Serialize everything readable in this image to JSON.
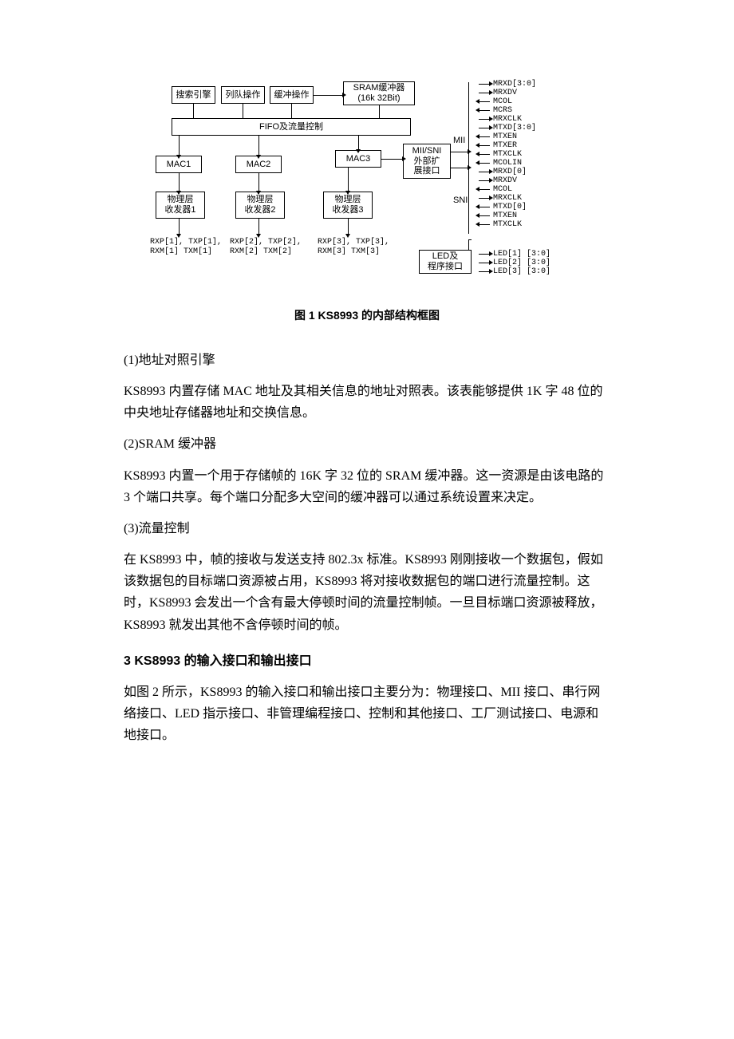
{
  "figure": {
    "caption": "图 1  KS8993 的内部结构框图",
    "blocks": {
      "search": "搜索引擎",
      "queue": "列队操作",
      "bufop": "缓冲操作",
      "sram": "SRAM缓冲器\n(16k 32Bit)",
      "fifo": "FIFO及流量控制",
      "mac1": "MAC1",
      "mac2": "MAC2",
      "mac3": "MAC3",
      "phy1": "物理层\n收发器1",
      "phy2": "物理层\n收发器2",
      "phy3": "物理层\n收发器3",
      "ext": "MII/SNI\n外部扩\n展接口",
      "led": "LED及\n程序接口"
    },
    "lbls": {
      "mii": "MII",
      "sni": "SNI"
    },
    "ports": {
      "p1": "RXP[1], TXP[1],\nRXM[1] TXM[1]",
      "p2": "RXP[2], TXP[2],\nRXM[2] TXM[2]",
      "p3": "RXP[3], TXP[3],\nRXM[3] TXM[3]"
    },
    "mii_pins": [
      "MRXD[3:0]",
      "MRXDV",
      "MCOL",
      "MCRS",
      "MRXCLK",
      "MTXD[3:0]",
      "MTXEN",
      "MTXER",
      "MTXCLK",
      "MCOLIN",
      "MRXD[0]",
      "MRXDV",
      "MCOL",
      "MRXCLK",
      "MTXD[0]",
      "MTXEN",
      "MTXCLK"
    ],
    "led_pins": [
      "LED[1] [3:0]",
      "LED[2] [3:0]",
      "LED[3] [3:0]"
    ],
    "colors": {
      "stroke": "#000000",
      "bg": "#ffffff",
      "text": "#000000"
    }
  },
  "body": {
    "p1_title": "(1)地址对照引擎",
    "p1": "KS8993 内置存储 MAC 地址及其相关信息的地址对照表。该表能够提供 1K 字 48 位的中央地址存储器地址和交换信息。",
    "p2_title": "(2)SRAM 缓冲器",
    "p2": "KS8993 内置一个用于存储帧的 16K 字 32 位的 SRAM 缓冲器。这一资源是由该电路的 3 个端口共享。每个端口分配多大空间的缓冲器可以通过系统设置来决定。",
    "p3_title": "(3)流量控制",
    "p3": "在 KS8993 中，帧的接收与发送支持 802.3x 标准。KS8993 刚刚接收一个数据包，假如该数据包的目标端口资源被占用，KS8993 将对接收数据包的端口进行流量控制。这时，KS8993 会发出一个含有最大停顿时间的流量控制帧。一旦目标端口资源被释放，KS8993 就发出其他不含停顿时间的帧。",
    "h3": "3 KS8993 的输入接口和输出接口",
    "p4": "如图 2 所示，KS8993 的输入接口和输出接口主要分为：物理接口、MII 接口、串行网络接口、LED 指示接口、非管理编程接口、控制和其他接口、工厂测试接口、电源和地接口。"
  }
}
